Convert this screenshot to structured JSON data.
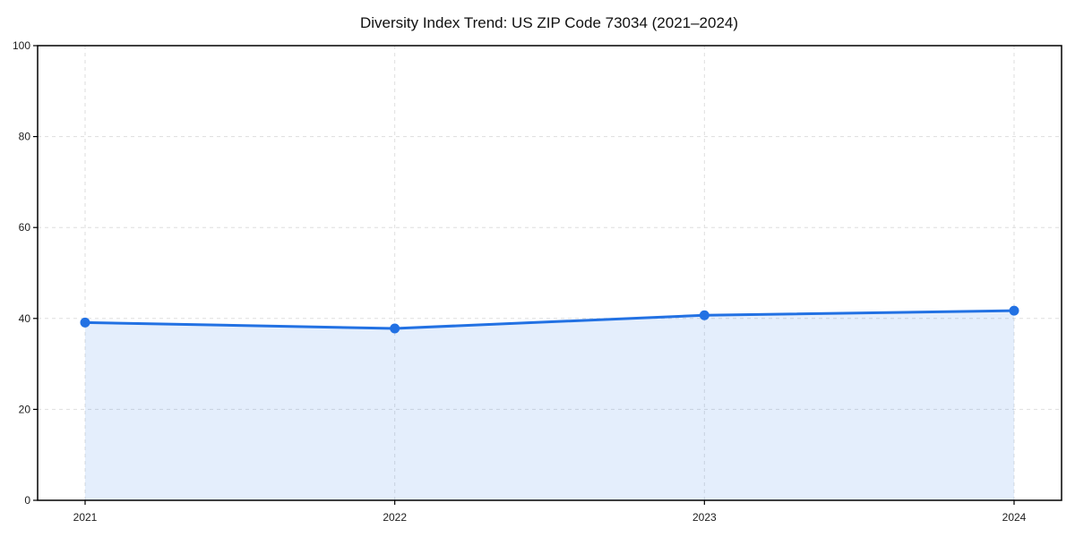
{
  "chart_data": {
    "type": "line",
    "title": "Diversity Index Trend: US ZIP Code 73034 (2021–2024)",
    "categories": [
      "2021",
      "2022",
      "2023",
      "2024"
    ],
    "values": [
      39.1,
      37.8,
      40.7,
      41.7
    ],
    "xlabel": "",
    "ylabel": "",
    "ylim": [
      0,
      100
    ],
    "yticks": [
      0,
      20,
      40,
      60,
      80,
      100
    ],
    "legend": "none",
    "grid": "dashed-both-axes",
    "area_fill": true,
    "colors": {
      "line": "#2271e3",
      "marker": "#2271e3",
      "fill": "#2271e3",
      "fill_opacity": 0.12,
      "grid": "#dedede",
      "spine": "#000000",
      "tick_label": "#1c1c1c",
      "title": "#111111",
      "background": "#ffffff"
    }
  }
}
